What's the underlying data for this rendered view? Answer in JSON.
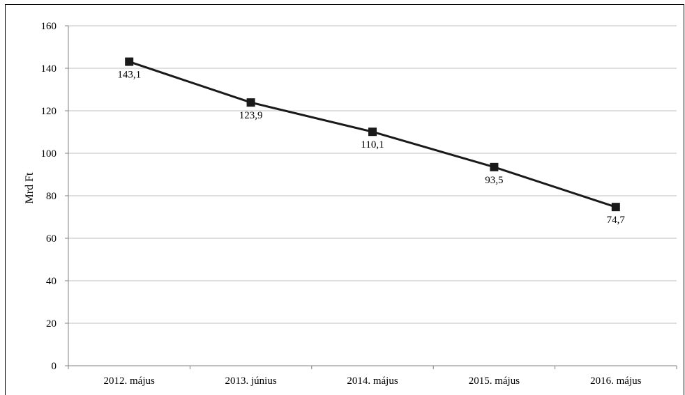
{
  "chart_data": {
    "type": "line",
    "title": "",
    "xlabel": "",
    "ylabel": "Mrd Ft",
    "categories": [
      "2012. május",
      "2013. június",
      "2014. május",
      "2015. május",
      "2016. május"
    ],
    "series": [
      {
        "values": [
          143.1,
          123.9,
          110.1,
          93.5,
          74.7
        ],
        "data_labels": [
          "143,1",
          "123,9",
          "110,1",
          "93,5",
          "74,7"
        ],
        "color": "#1a1a1a",
        "marker": "square"
      }
    ],
    "ylim": [
      0,
      160
    ],
    "yticks": [
      0,
      20,
      40,
      60,
      80,
      100,
      120,
      140,
      160
    ],
    "grid": true,
    "legend": "none",
    "gridline_color": "#bfbfbf",
    "axis_color": "#808080"
  }
}
